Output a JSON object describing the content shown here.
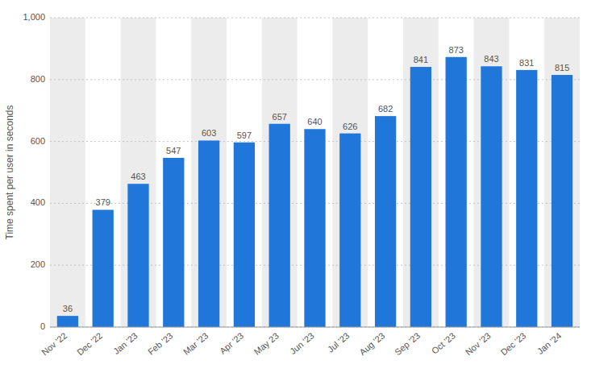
{
  "chart_data": {
    "type": "bar",
    "categories": [
      "Nov '22",
      "Dec '22",
      "Jan '23",
      "Feb '23",
      "Mar '23",
      "Apr '23",
      "May 23",
      "Jun '23",
      "Jul '23",
      "Aug '23",
      "Sep '23",
      "Oct '23",
      "Nov '23",
      "Dec '23",
      "Jan '24"
    ],
    "values": [
      36,
      379,
      463,
      547,
      603,
      597,
      657,
      640,
      626,
      682,
      841,
      873,
      843,
      831,
      815
    ],
    "color": "#2176d9",
    "ylabel": "Time spent per user in seconds",
    "ylim": [
      0,
      1000
    ],
    "yticks": [
      0,
      200,
      400,
      600,
      800,
      {
        "value": 1000,
        "label": "1,000"
      }
    ],
    "grid": true,
    "data_labels": true
  }
}
